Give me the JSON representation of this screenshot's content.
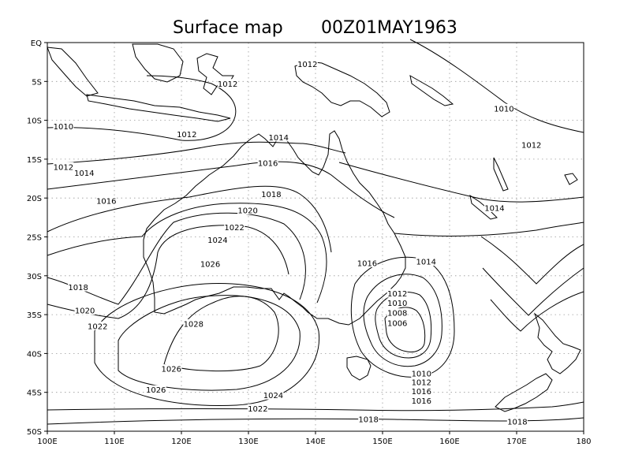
{
  "title": {
    "product": "Surface map",
    "valid_time": "00Z01MAY1963"
  },
  "axes": {
    "lon_range": [
      100,
      180
    ],
    "lat_range": [
      -50,
      0
    ],
    "lon_ticks": [
      100,
      110,
      120,
      130,
      140,
      150,
      160,
      170,
      180
    ],
    "lon_tick_labels": [
      "100E",
      "110E",
      "120E",
      "130E",
      "140E",
      "150E",
      "160E",
      "170E",
      "180"
    ],
    "lat_ticks": [
      0,
      -5,
      -10,
      -15,
      -20,
      -25,
      -30,
      -35,
      -40,
      -45,
      -50
    ],
    "lat_tick_labels": [
      "EQ",
      "5S",
      "10S",
      "15S",
      "20S",
      "25S",
      "30S",
      "35S",
      "40S",
      "45S",
      "50S"
    ],
    "grid": true
  },
  "isobars": {
    "labels": [
      {
        "text": "1012",
        "lon": 138.8,
        "lat": -2.8
      },
      {
        "text": "1012",
        "lon": 126.9,
        "lat": -5.3
      },
      {
        "text": "1010",
        "lon": 102.4,
        "lat": -10.8
      },
      {
        "text": "1012",
        "lon": 120.8,
        "lat": -11.8
      },
      {
        "text": "1014",
        "lon": 134.5,
        "lat": -12.2
      },
      {
        "text": "1012",
        "lon": 102.4,
        "lat": -16.0
      },
      {
        "text": "1014",
        "lon": 105.5,
        "lat": -16.8
      },
      {
        "text": "1016",
        "lon": 132.9,
        "lat": -15.5
      },
      {
        "text": "1018",
        "lon": 133.4,
        "lat": -19.5
      },
      {
        "text": "1016",
        "lon": 108.8,
        "lat": -20.4
      },
      {
        "text": "1020",
        "lon": 129.9,
        "lat": -21.6
      },
      {
        "text": "1022",
        "lon": 127.9,
        "lat": -23.8
      },
      {
        "text": "1024",
        "lon": 125.4,
        "lat": -25.4
      },
      {
        "text": "1026",
        "lon": 124.3,
        "lat": -28.5
      },
      {
        "text": "1016",
        "lon": 147.7,
        "lat": -28.4
      },
      {
        "text": "1014",
        "lon": 156.5,
        "lat": -28.2
      },
      {
        "text": "1010",
        "lon": 168.1,
        "lat": -8.5
      },
      {
        "text": "1012",
        "lon": 172.2,
        "lat": -13.2
      },
      {
        "text": "1014",
        "lon": 166.7,
        "lat": -21.3
      },
      {
        "text": "1018",
        "lon": 104.6,
        "lat": -31.5
      },
      {
        "text": "1020",
        "lon": 105.6,
        "lat": -34.5
      },
      {
        "text": "1022",
        "lon": 107.5,
        "lat": -36.5
      },
      {
        "text": "1028",
        "lon": 121.8,
        "lat": -36.2
      },
      {
        "text": "1026",
        "lon": 118.5,
        "lat": -42.0
      },
      {
        "text": "1026",
        "lon": 116.2,
        "lat": -44.7
      },
      {
        "text": "1024",
        "lon": 133.7,
        "lat": -45.4
      },
      {
        "text": "1022",
        "lon": 131.4,
        "lat": -47.1
      },
      {
        "text": "1012",
        "lon": 152.2,
        "lat": -32.3
      },
      {
        "text": "1010",
        "lon": 152.2,
        "lat": -33.5
      },
      {
        "text": "1008",
        "lon": 152.2,
        "lat": -34.8
      },
      {
        "text": "1006",
        "lon": 152.2,
        "lat": -36.1
      },
      {
        "text": "1010",
        "lon": 155.8,
        "lat": -42.6
      },
      {
        "text": "1012",
        "lon": 155.8,
        "lat": -43.7
      },
      {
        "text": "1016",
        "lon": 155.8,
        "lat": -44.9
      },
      {
        "text": "1016",
        "lon": 155.8,
        "lat": -46.1
      },
      {
        "text": "1018",
        "lon": 147.9,
        "lat": -48.5
      },
      {
        "text": "1018",
        "lon": 170.1,
        "lat": -48.8
      }
    ]
  }
}
